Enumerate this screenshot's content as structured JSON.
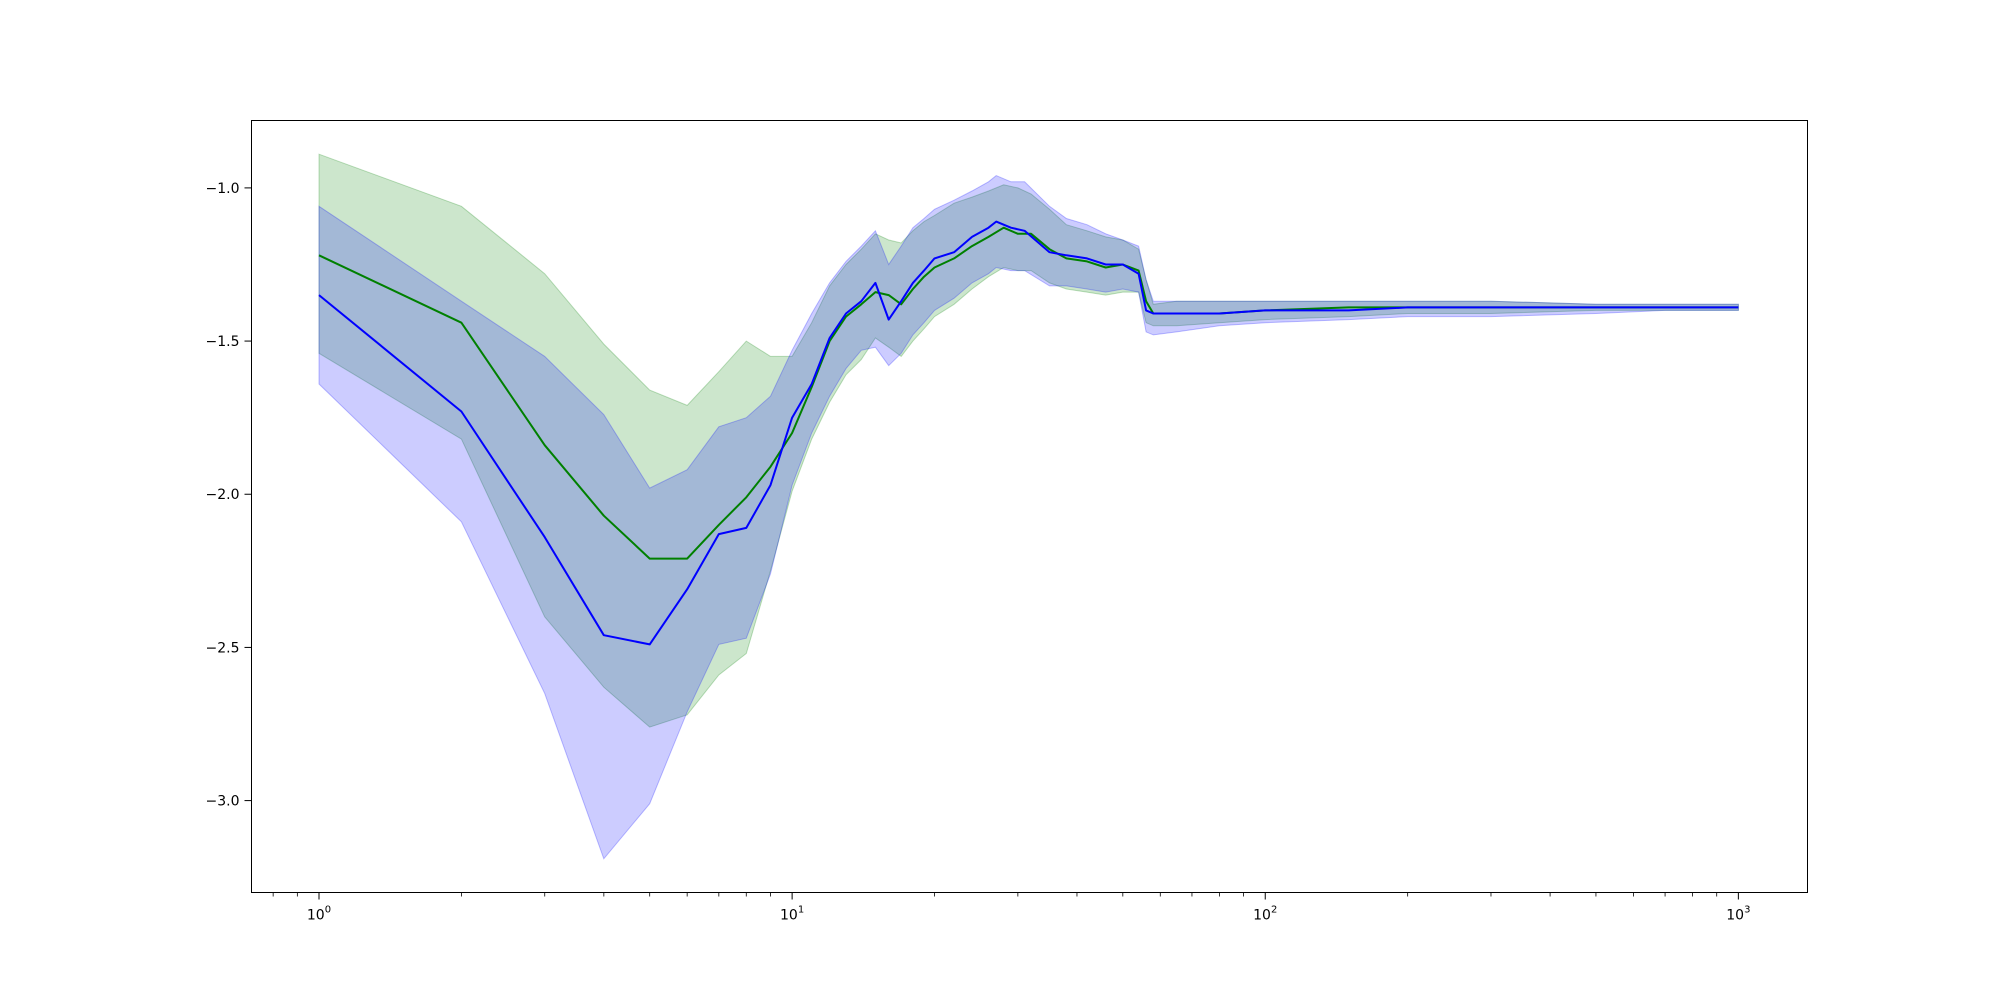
{
  "chart_data": {
    "type": "line",
    "xscale": "log",
    "xlim": [
      0.72,
      1400
    ],
    "ylim": [
      -3.3,
      -0.78
    ],
    "grid": false,
    "legend": "none",
    "xticks": [
      {
        "value": 1,
        "base": "10",
        "exp": "0"
      },
      {
        "value": 10,
        "base": "10",
        "exp": "1"
      },
      {
        "value": 100,
        "base": "10",
        "exp": "2"
      },
      {
        "value": 1000,
        "base": "10",
        "exp": "3"
      }
    ],
    "yticks": [
      {
        "value": -1.0,
        "label": "−1.0"
      },
      {
        "value": -1.5,
        "label": "−1.5"
      },
      {
        "value": -2.0,
        "label": "−2.0"
      },
      {
        "value": -2.5,
        "label": "−2.5"
      },
      {
        "value": -3.0,
        "label": "−3.0"
      }
    ],
    "series": [
      {
        "color": "#008000",
        "band_color": "#008000",
        "points": [
          [
            1,
            -1.22,
            -1.54,
            -0.89
          ],
          [
            2,
            -1.44,
            -1.82,
            -1.06
          ],
          [
            3,
            -1.84,
            -2.4,
            -1.28
          ],
          [
            4,
            -2.07,
            -2.63,
            -1.51
          ],
          [
            5,
            -2.21,
            -2.76,
            -1.66
          ],
          [
            6,
            -2.21,
            -2.72,
            -1.71
          ],
          [
            7,
            -2.1,
            -2.59,
            -1.6
          ],
          [
            8,
            -2.01,
            -2.52,
            -1.5
          ],
          [
            9,
            -1.91,
            -2.25,
            -1.55
          ],
          [
            10,
            -1.8,
            -1.99,
            -1.55
          ],
          [
            11,
            -1.65,
            -1.82,
            -1.44
          ],
          [
            12,
            -1.5,
            -1.7,
            -1.32
          ],
          [
            13,
            -1.42,
            -1.61,
            -1.25
          ],
          [
            14,
            -1.38,
            -1.56,
            -1.2
          ],
          [
            15,
            -1.34,
            -1.49,
            -1.15
          ],
          [
            16,
            -1.35,
            -1.52,
            -1.17
          ],
          [
            17,
            -1.38,
            -1.55,
            -1.18
          ],
          [
            18,
            -1.33,
            -1.5,
            -1.14
          ],
          [
            19,
            -1.29,
            -1.46,
            -1.11
          ],
          [
            20,
            -1.26,
            -1.42,
            -1.09
          ],
          [
            22,
            -1.23,
            -1.38,
            -1.05
          ],
          [
            24,
            -1.19,
            -1.33,
            -1.03
          ],
          [
            26,
            -1.16,
            -1.29,
            -1.01
          ],
          [
            28,
            -1.13,
            -1.26,
            -0.99
          ],
          [
            30,
            -1.15,
            -1.27,
            -1.0
          ],
          [
            32,
            -1.15,
            -1.27,
            -1.02
          ],
          [
            35,
            -1.2,
            -1.31,
            -1.07
          ],
          [
            38,
            -1.23,
            -1.33,
            -1.12
          ],
          [
            42,
            -1.24,
            -1.34,
            -1.14
          ],
          [
            46,
            -1.26,
            -1.35,
            -1.16
          ],
          [
            50,
            -1.25,
            -1.34,
            -1.17
          ],
          [
            54,
            -1.27,
            -1.34,
            -1.2
          ],
          [
            56,
            -1.37,
            -1.44,
            -1.3
          ],
          [
            58,
            -1.41,
            -1.45,
            -1.38
          ],
          [
            65,
            -1.41,
            -1.45,
            -1.37
          ],
          [
            80,
            -1.41,
            -1.44,
            -1.37
          ],
          [
            100,
            -1.4,
            -1.43,
            -1.37
          ],
          [
            150,
            -1.39,
            -1.42,
            -1.37
          ],
          [
            200,
            -1.39,
            -1.41,
            -1.37
          ],
          [
            300,
            -1.39,
            -1.41,
            -1.37
          ],
          [
            500,
            -1.39,
            -1.4,
            -1.38
          ],
          [
            700,
            -1.39,
            -1.4,
            -1.38
          ],
          [
            1000,
            -1.39,
            -1.4,
            -1.38
          ]
        ]
      },
      {
        "color": "#0000ff",
        "band_color": "#0000ff",
        "points": [
          [
            1,
            -1.35,
            -1.64,
            -1.06
          ],
          [
            2,
            -1.73,
            -2.09,
            -1.37
          ],
          [
            3,
            -2.14,
            -2.65,
            -1.55
          ],
          [
            4,
            -2.46,
            -3.19,
            -1.74
          ],
          [
            5,
            -2.49,
            -3.01,
            -1.98
          ],
          [
            6,
            -2.31,
            -2.71,
            -1.92
          ],
          [
            7,
            -2.13,
            -2.49,
            -1.78
          ],
          [
            8,
            -2.11,
            -2.47,
            -1.75
          ],
          [
            9,
            -1.97,
            -2.26,
            -1.68
          ],
          [
            10,
            -1.75,
            -1.97,
            -1.53
          ],
          [
            11,
            -1.64,
            -1.8,
            -1.41
          ],
          [
            12,
            -1.49,
            -1.68,
            -1.31
          ],
          [
            13,
            -1.41,
            -1.59,
            -1.24
          ],
          [
            14,
            -1.37,
            -1.53,
            -1.19
          ],
          [
            15,
            -1.31,
            -1.52,
            -1.14
          ],
          [
            16,
            -1.43,
            -1.58,
            -1.25
          ],
          [
            17,
            -1.37,
            -1.54,
            -1.19
          ],
          [
            18,
            -1.31,
            -1.48,
            -1.13
          ],
          [
            19,
            -1.27,
            -1.44,
            -1.1
          ],
          [
            20,
            -1.23,
            -1.4,
            -1.07
          ],
          [
            22,
            -1.21,
            -1.36,
            -1.04
          ],
          [
            24,
            -1.16,
            -1.31,
            -1.01
          ],
          [
            26,
            -1.13,
            -1.28,
            -0.98
          ],
          [
            27,
            -1.11,
            -1.26,
            -0.96
          ],
          [
            29,
            -1.13,
            -1.27,
            -0.98
          ],
          [
            31,
            -1.14,
            -1.27,
            -0.98
          ],
          [
            35,
            -1.21,
            -1.32,
            -1.06
          ],
          [
            38,
            -1.22,
            -1.32,
            -1.1
          ],
          [
            42,
            -1.23,
            -1.33,
            -1.12
          ],
          [
            46,
            -1.25,
            -1.34,
            -1.15
          ],
          [
            50,
            -1.25,
            -1.33,
            -1.17
          ],
          [
            54,
            -1.28,
            -1.34,
            -1.19
          ],
          [
            56,
            -1.4,
            -1.47,
            -1.3
          ],
          [
            58,
            -1.41,
            -1.48,
            -1.37
          ],
          [
            65,
            -1.41,
            -1.47,
            -1.37
          ],
          [
            80,
            -1.41,
            -1.45,
            -1.37
          ],
          [
            100,
            -1.4,
            -1.44,
            -1.37
          ],
          [
            150,
            -1.4,
            -1.43,
            -1.37
          ],
          [
            200,
            -1.39,
            -1.42,
            -1.37
          ],
          [
            300,
            -1.39,
            -1.42,
            -1.37
          ],
          [
            500,
            -1.39,
            -1.41,
            -1.38
          ],
          [
            700,
            -1.39,
            -1.4,
            -1.38
          ],
          [
            1000,
            -1.39,
            -1.4,
            -1.38
          ]
        ]
      }
    ]
  }
}
